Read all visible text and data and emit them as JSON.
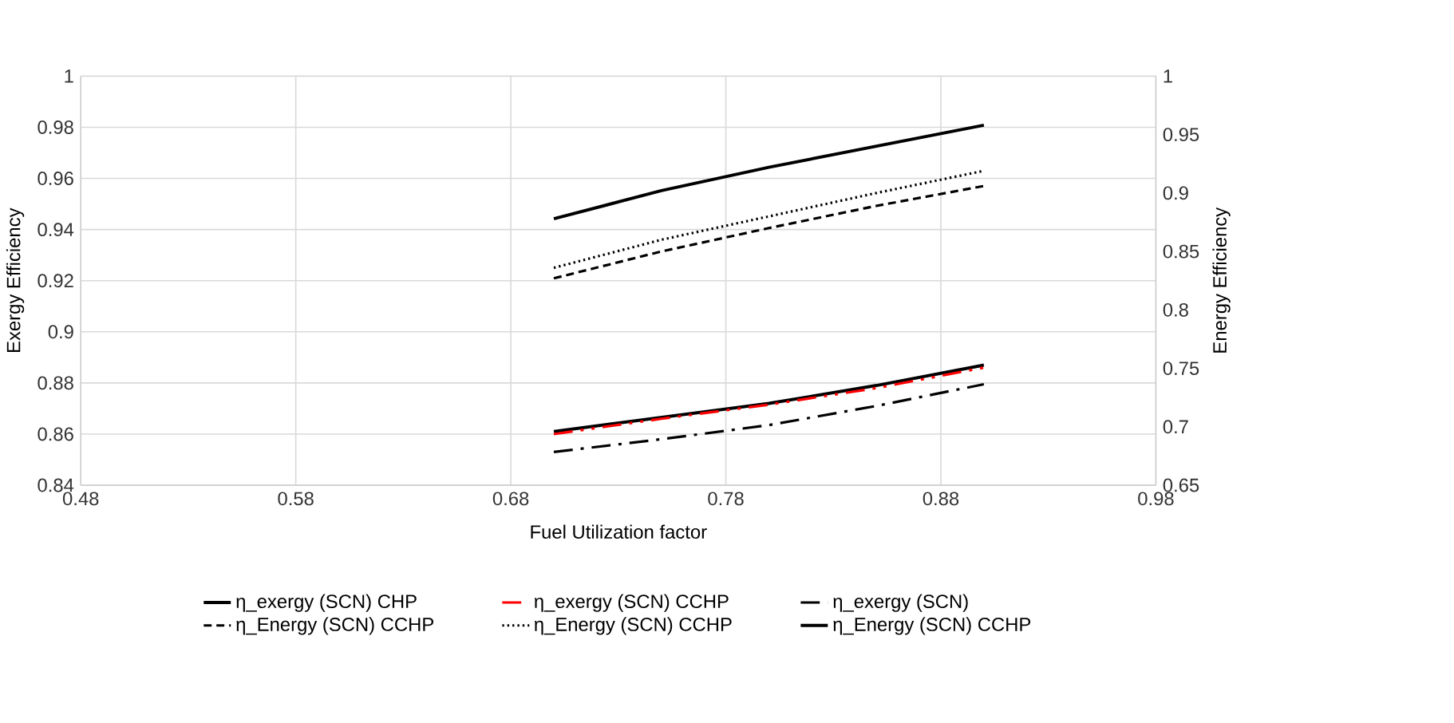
{
  "chart_data": {
    "type": "line",
    "xlabel": "Fuel Utilization factor",
    "ylabel": "Exergy Efficiency",
    "y2label": "Energy Efficiency",
    "x": [
      0.7,
      0.75,
      0.8,
      0.85,
      0.9
    ],
    "series": [
      {
        "name": "η_exergy (SCN) CHP",
        "color": "#000000",
        "line_style": "solid",
        "values": [
          0.861,
          0.8665,
          0.872,
          0.879,
          0.887
        ]
      },
      {
        "name": "η_exergy (SCN) CCHP",
        "color": "#ff0000",
        "line_style": "dashdotdot",
        "values": [
          0.86,
          0.866,
          0.8715,
          0.878,
          0.886
        ]
      },
      {
        "name": "η_exergy (SCN)",
        "color": "#000000",
        "line_style": "dashdot",
        "values": [
          0.853,
          0.858,
          0.8635,
          0.871,
          0.8795
        ]
      },
      {
        "name": "η_Energy (SCN) CCHP",
        "color": "#000000",
        "line_style": "dashed",
        "axis": "y2",
        "values": [
          0.827,
          0.85,
          0.87,
          0.889,
          0.906
        ]
      },
      {
        "name": "η_Energy (SCN) CCHP",
        "color": "#000000",
        "line_style": "dotted",
        "axis": "y2",
        "values": [
          0.836,
          0.86,
          0.88,
          0.9,
          0.919
        ]
      },
      {
        "name": "η_Energy (SCN) CCHP",
        "color": "#000000",
        "line_style": "solid",
        "axis": "y2",
        "values": [
          0.878,
          0.902,
          0.922,
          0.94,
          0.958
        ]
      }
    ],
    "xlim": [
      0.48,
      0.98
    ],
    "xticks": [
      0.48,
      0.58,
      0.68,
      0.78,
      0.88,
      0.98
    ],
    "ylim": [
      0.84,
      1
    ],
    "yticks": [
      0.84,
      0.86,
      0.88,
      0.9,
      0.92,
      0.94,
      0.96,
      0.98,
      1
    ],
    "y2lim": [
      0.65,
      1
    ],
    "y2ticks": [
      0.65,
      0.7,
      0.75,
      0.8,
      0.85,
      0.9,
      0.95,
      1
    ],
    "grid": true,
    "legend": "bottom",
    "marker": "none"
  }
}
